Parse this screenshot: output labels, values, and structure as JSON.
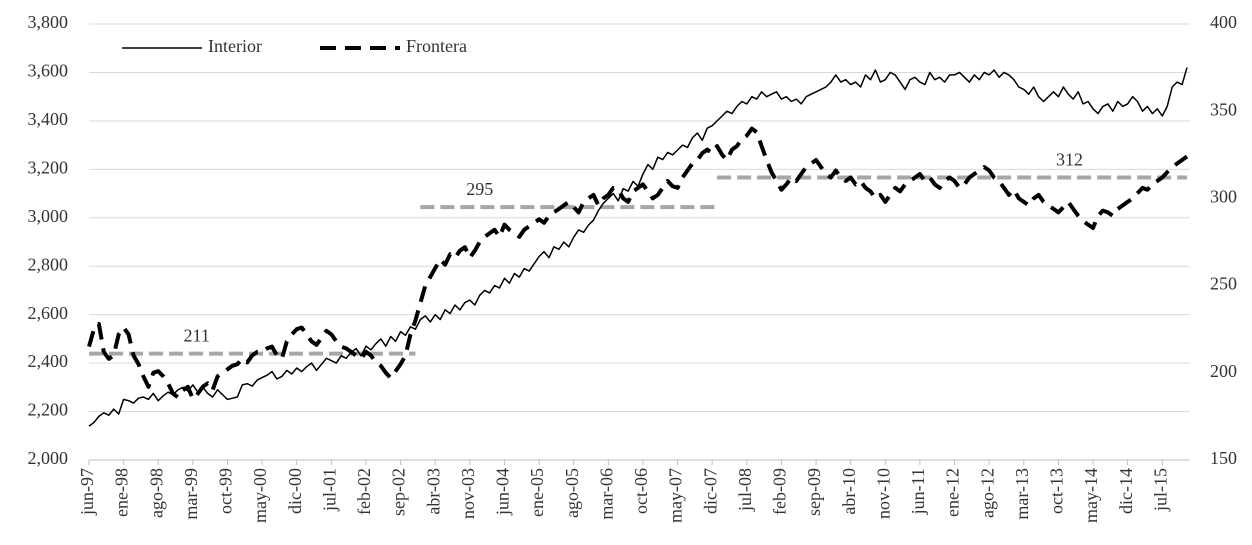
{
  "chart_data": {
    "type": "line",
    "categories": [
      "jun-97",
      null,
      null,
      null,
      null,
      null,
      null,
      "ene-98",
      null,
      null,
      null,
      null,
      null,
      null,
      "ago-98",
      null,
      null,
      null,
      null,
      null,
      null,
      "mar-99",
      null,
      null,
      null,
      null,
      null,
      null,
      "oct-99",
      null,
      null,
      null,
      null,
      null,
      null,
      "may-00",
      null,
      null,
      null,
      null,
      null,
      null,
      "dic-00",
      null,
      null,
      null,
      null,
      null,
      null,
      "jul-01",
      null,
      null,
      null,
      null,
      null,
      null,
      "feb-02",
      null,
      null,
      null,
      null,
      null,
      null,
      "sep-02",
      null,
      null,
      null,
      null,
      null,
      null,
      "abr-03",
      null,
      null,
      null,
      null,
      null,
      null,
      "nov-03",
      null,
      null,
      null,
      null,
      null,
      null,
      "jun-04",
      null,
      null,
      null,
      null,
      null,
      null,
      "ene-05",
      null,
      null,
      null,
      null,
      null,
      null,
      "ago-05",
      null,
      null,
      null,
      null,
      null,
      null,
      "mar-06",
      null,
      null,
      null,
      null,
      null,
      null,
      "oct-06",
      null,
      null,
      null,
      null,
      null,
      null,
      "may-07",
      null,
      null,
      null,
      null,
      null,
      null,
      "dic-07",
      null,
      null,
      null,
      null,
      null,
      null,
      "jul-08",
      null,
      null,
      null,
      null,
      null,
      null,
      "feb-09",
      null,
      null,
      null,
      null,
      null,
      null,
      "sep-09",
      null,
      null,
      null,
      null,
      null,
      null,
      "abr-10",
      null,
      null,
      null,
      null,
      null,
      null,
      "nov-10",
      null,
      null,
      null,
      null,
      null,
      null,
      "jun-11",
      null,
      null,
      null,
      null,
      null,
      null,
      "ene-12",
      null,
      null,
      null,
      null,
      null,
      null,
      "ago-12",
      null,
      null,
      null,
      null,
      null,
      null,
      "mar-13",
      null,
      null,
      null,
      null,
      null,
      null,
      "oct-13",
      null,
      null,
      null,
      null,
      null,
      null,
      "may-14",
      null,
      null,
      null,
      null,
      null,
      null,
      "dic-14",
      null,
      null,
      null,
      null,
      null,
      null,
      "jul-15",
      null,
      null,
      null,
      null,
      null
    ],
    "series": [
      {
        "name": "Interior",
        "color": "#000000",
        "axis": "y",
        "values": [
          2140,
          2155,
          2180,
          2195,
          2185,
          2210,
          2190,
          2250,
          2245,
          2235,
          2255,
          2260,
          2250,
          2275,
          2245,
          2265,
          2280,
          2270,
          2290,
          2300,
          2285,
          2310,
          2280,
          2300,
          2275,
          2260,
          2290,
          2270,
          2250,
          2255,
          2260,
          2310,
          2315,
          2305,
          2330,
          2340,
          2350,
          2365,
          2335,
          2345,
          2370,
          2355,
          2380,
          2365,
          2385,
          2400,
          2370,
          2395,
          2420,
          2410,
          2400,
          2430,
          2420,
          2445,
          2460,
          2430,
          2470,
          2455,
          2480,
          2500,
          2470,
          2510,
          2490,
          2530,
          2515,
          2550,
          2540,
          2580,
          2595,
          2570,
          2600,
          2580,
          2620,
          2605,
          2640,
          2620,
          2650,
          2660,
          2640,
          2680,
          2700,
          2690,
          2720,
          2710,
          2750,
          2730,
          2770,
          2755,
          2790,
          2780,
          2810,
          2840,
          2860,
          2835,
          2880,
          2870,
          2900,
          2880,
          2920,
          2950,
          2940,
          2970,
          2990,
          3030,
          3060,
          3080,
          3100,
          3070,
          3120,
          3110,
          3150,
          3130,
          3180,
          3220,
          3200,
          3250,
          3240,
          3270,
          3260,
          3280,
          3300,
          3290,
          3330,
          3350,
          3320,
          3370,
          3380,
          3400,
          3420,
          3440,
          3430,
          3460,
          3480,
          3470,
          3500,
          3490,
          3520,
          3500,
          3510,
          3520,
          3490,
          3500,
          3480,
          3490,
          3470,
          3500,
          3510,
          3520,
          3530,
          3540,
          3560,
          3590,
          3560,
          3570,
          3550,
          3560,
          3540,
          3590,
          3570,
          3610,
          3560,
          3570,
          3600,
          3590,
          3560,
          3530,
          3570,
          3580,
          3560,
          3550,
          3600,
          3570,
          3580,
          3560,
          3590,
          3590,
          3600,
          3580,
          3560,
          3590,
          3570,
          3600,
          3590,
          3610,
          3580,
          3600,
          3590,
          3570,
          3540,
          3530,
          3510,
          3540,
          3500,
          3480,
          3500,
          3520,
          3500,
          3540,
          3510,
          3490,
          3520,
          3470,
          3480,
          3450,
          3430,
          3460,
          3470,
          3440,
          3480,
          3460,
          3470,
          3500,
          3480,
          3440,
          3460,
          3430,
          3450,
          3420,
          3460,
          3540,
          3560,
          3550,
          3620
        ]
      },
      {
        "name": "Frontera",
        "color": "#000000",
        "axis": "y2",
        "values": [
          215,
          225,
          228,
          212,
          208,
          210,
          222,
          226,
          222,
          210,
          205,
          198,
          192,
          200,
          201,
          198,
          194,
          188,
          186,
          190,
          192,
          185,
          188,
          192,
          194,
          190,
          198,
          200,
          202,
          204,
          205,
          208,
          206,
          210,
          212,
          212,
          214,
          215,
          210,
          208,
          218,
          222,
          225,
          226,
          222,
          218,
          216,
          220,
          224,
          222,
          218,
          215,
          214,
          212,
          210,
          208,
          212,
          210,
          206,
          204,
          200,
          197,
          201,
          205,
          210,
          222,
          230,
          240,
          250,
          255,
          260,
          265,
          262,
          268,
          266,
          270,
          272,
          266,
          270,
          275,
          278,
          280,
          282,
          278,
          285,
          282,
          280,
          278,
          282,
          284,
          286,
          288,
          286,
          290,
          292,
          294,
          296,
          298,
          295,
          292,
          298,
          300,
          302,
          296,
          300,
          302,
          306,
          305,
          300,
          298,
          304,
          306,
          308,
          304,
          300,
          302,
          306,
          310,
          307,
          306,
          312,
          316,
          320,
          322,
          326,
          328,
          326,
          330,
          325,
          322,
          328,
          330,
          334,
          336,
          340,
          338,
          330,
          322,
          315,
          310,
          305,
          308,
          312,
          310,
          314,
          318,
          320,
          322,
          318,
          314,
          312,
          316,
          312,
          310,
          312,
          308,
          310,
          306,
          304,
          300,
          302,
          298,
          302,
          306,
          304,
          308,
          310,
          312,
          314,
          310,
          312,
          308,
          306,
          310,
          312,
          310,
          306,
          308,
          312,
          314,
          316,
          318,
          316,
          312,
          310,
          306,
          302,
          305,
          300,
          298,
          296,
          300,
          302,
          298,
          296,
          294,
          292,
          295,
          298,
          294,
          290,
          287,
          285,
          283,
          290,
          293,
          292,
          290,
          294,
          296,
          298,
          300,
          303,
          306,
          305,
          308,
          310,
          312,
          315,
          318,
          320,
          322,
          324
        ]
      }
    ],
    "reference_lines": [
      {
        "value": 211,
        "color": "#a6a6a6"
      },
      {
        "value": 295,
        "color": "#a6a6a6"
      },
      {
        "value": 312,
        "color": "#a6a6a6"
      }
    ],
    "ylim": [
      2000,
      3800
    ],
    "yticks": [
      {
        "value": 2000,
        "label": "2,000"
      },
      {
        "value": 2200,
        "label": "2,200"
      },
      {
        "value": 2400,
        "label": "2,400"
      },
      {
        "value": 2600,
        "label": "2,600"
      },
      {
        "value": 2800,
        "label": "2,800"
      },
      {
        "value": 3000,
        "label": "3,000"
      },
      {
        "value": 3200,
        "label": "3,200"
      },
      {
        "value": 3400,
        "label": "3,400"
      },
      {
        "value": 3600,
        "label": "3,600"
      },
      {
        "value": 3800,
        "label": "3,800"
      }
    ],
    "y2lim": [
      150,
      400
    ],
    "y2ticks": [
      150,
      200,
      250,
      300,
      350,
      400
    ],
    "grid": true,
    "legend": "top-left"
  }
}
